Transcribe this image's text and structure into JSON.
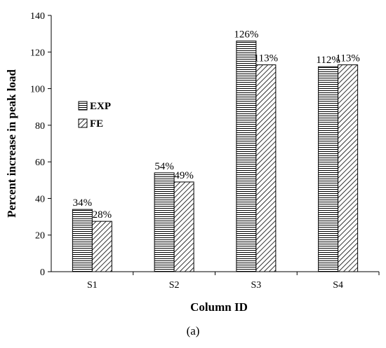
{
  "caption": "(a)",
  "chart_data": {
    "type": "bar",
    "title": "",
    "xlabel": "Column ID",
    "ylabel": "Percent increase in peak load",
    "categories": [
      "S1",
      "S2",
      "S3",
      "S4"
    ],
    "ylim": [
      0,
      140
    ],
    "yticks": [
      0,
      20,
      40,
      60,
      80,
      100,
      120,
      140
    ],
    "grid": false,
    "legend_position": "left",
    "series": [
      {
        "name": "EXP",
        "pattern": "horizontal-lines",
        "values": [
          34,
          54,
          126,
          112
        ],
        "labels": [
          "34%",
          "54%",
          "126%",
          "112%"
        ]
      },
      {
        "name": "FE",
        "pattern": "diagonal-hatch",
        "values": [
          27.5,
          49,
          113,
          113
        ],
        "labels": [
          "28%",
          "49%",
          "113%",
          "113%"
        ]
      }
    ]
  }
}
